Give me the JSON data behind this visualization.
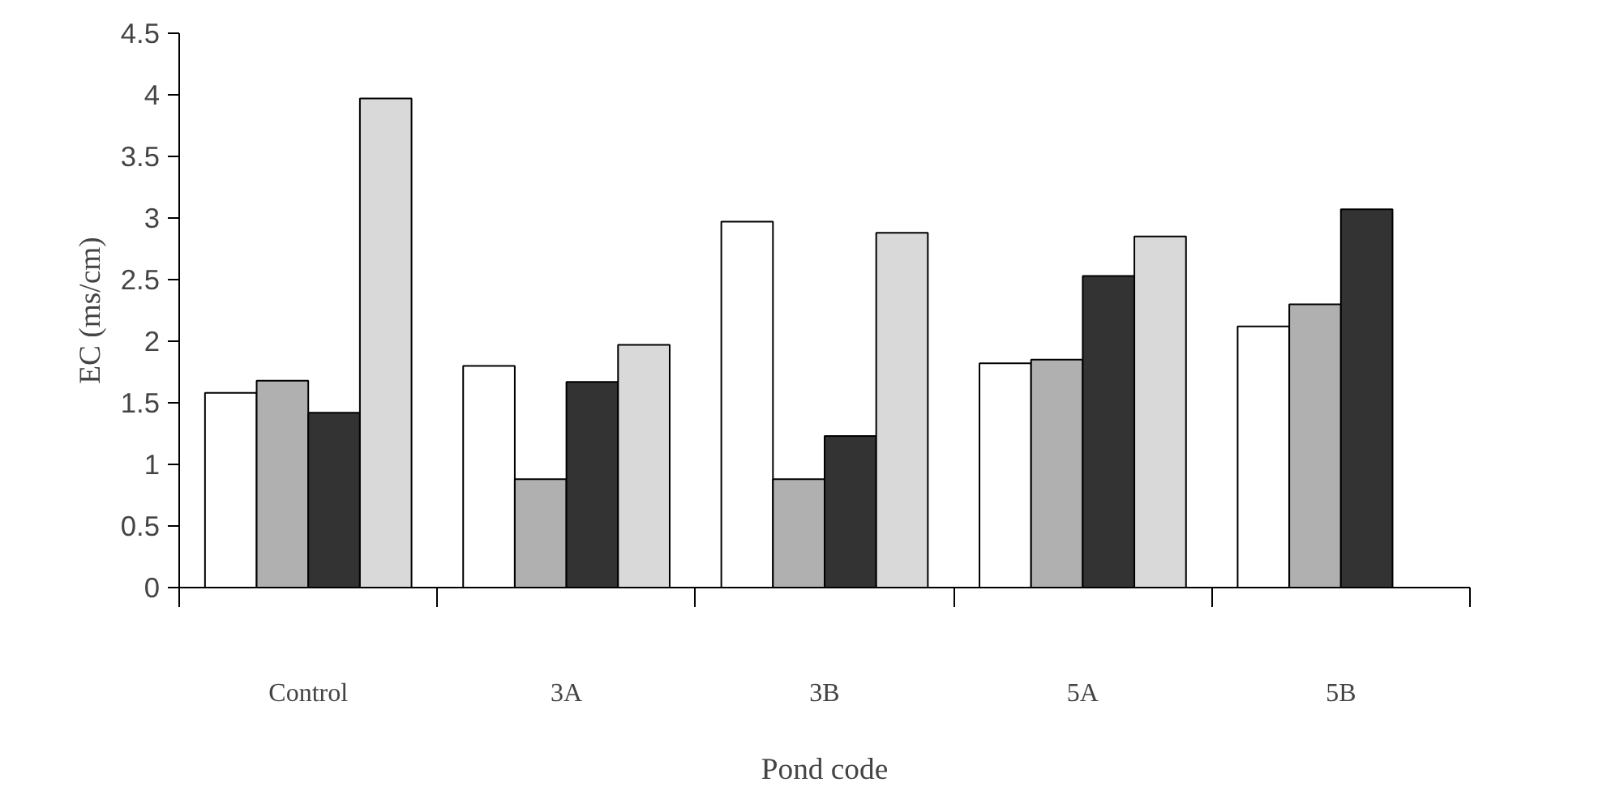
{
  "chart_data": {
    "type": "bar",
    "xlabel": "Pond code",
    "ylabel": "EC (ms/cm)",
    "categories": [
      "Control",
      "3A",
      "3B",
      "5A",
      "5B"
    ],
    "series": [
      {
        "color": "#ffffff",
        "values": [
          1.58,
          1.8,
          2.97,
          1.82,
          2.12
        ]
      },
      {
        "color": "#b0b0b0",
        "values": [
          1.68,
          0.88,
          0.88,
          1.85,
          2.3
        ]
      },
      {
        "color": "#333333",
        "values": [
          1.42,
          1.67,
          1.23,
          2.53,
          3.07
        ]
      },
      {
        "color": "#d9d9d9",
        "values": [
          3.97,
          1.97,
          2.88,
          2.85,
          null
        ]
      }
    ],
    "ylim": [
      0,
      4.5
    ],
    "yticks": [
      0,
      0.5,
      1,
      1.5,
      2,
      2.5,
      3,
      3.5,
      4,
      4.5
    ],
    "grid": false
  }
}
